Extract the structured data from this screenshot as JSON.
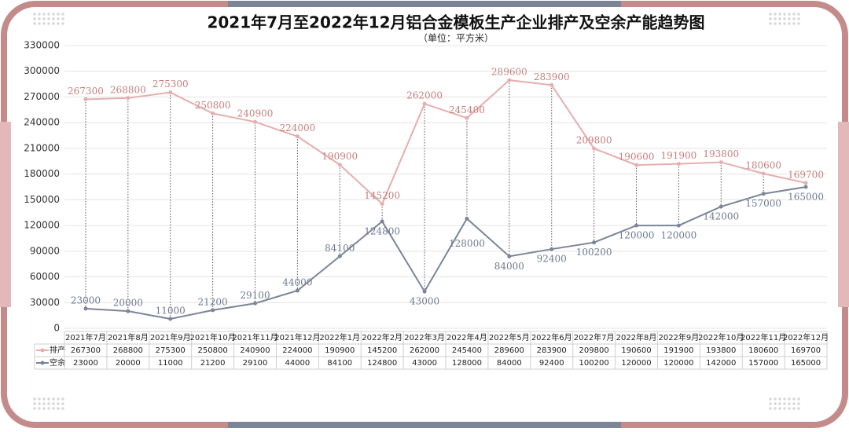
{
  "chart_data": {
    "type": "line",
    "title": "2021年7月至2022年12月铝合金模板生产企业排产及空余产能趋势图",
    "subtitle": "（单位：平方米）",
    "categories": [
      "2021年7月",
      "2021年8月",
      "2021年9月",
      "2021年10月",
      "2021年11月",
      "2021年12月",
      "2022年1月",
      "2022年2月",
      "2022年3月",
      "2022年4月",
      "2022年5月",
      "2022年6月",
      "2022年7月",
      "2022年8月",
      "2022年9月",
      "2022年10月",
      "2022年11月",
      "2022年12月"
    ],
    "series": [
      {
        "name": "排产",
        "color": "#e6aeae",
        "values": [
          267300,
          268800,
          275300,
          250800,
          240900,
          224000,
          190900,
          145200,
          262000,
          245400,
          289600,
          283900,
          209800,
          190600,
          191900,
          193800,
          180600,
          169700
        ]
      },
      {
        "name": "空余",
        "color": "#7b8597",
        "values": [
          23000,
          20000,
          11000,
          21200,
          29100,
          44000,
          84100,
          124800,
          43000,
          128000,
          84000,
          92400,
          100200,
          120000,
          120000,
          142000,
          157000,
          165000
        ]
      }
    ],
    "ylim": [
      0,
      330000
    ],
    "yticks": [
      0,
      30000,
      60000,
      90000,
      120000,
      150000,
      180000,
      210000,
      240000,
      270000,
      300000,
      330000
    ],
    "grid": true
  }
}
